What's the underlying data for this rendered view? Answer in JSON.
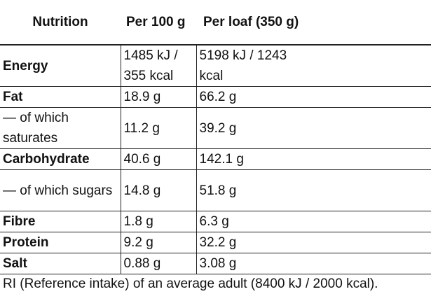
{
  "table": {
    "headers": {
      "nutrient": "Nutrition",
      "per_100g": "Per 100 g",
      "per_loaf": "Per loaf (350 g)"
    },
    "rows": [
      {
        "name": "Energy",
        "per_100g": "1485 kJ / 355 kcal",
        "per_loaf": "5198 kJ / 1243 kcal"
      },
      {
        "name": "Fat",
        "per_100g": "18.9 g",
        "per_loaf": "66.2 g"
      },
      {
        "name": "— of which saturates",
        "per_100g": "11.2 g",
        "per_loaf": "39.2 g"
      },
      {
        "name": "Carbohydrate",
        "per_100g": "40.6 g",
        "per_loaf": "142.1 g"
      },
      {
        "name": "— of which sugars",
        "per_100g": "14.8 g",
        "per_loaf": "51.8 g"
      },
      {
        "name": "Fibre",
        "per_100g": "1.8 g",
        "per_loaf": "6.3 g"
      },
      {
        "name": "Protein",
        "per_100g": "9.2 g",
        "per_loaf": "32.2 g"
      },
      {
        "name": "Salt",
        "per_100g": "0.88 g",
        "per_loaf": "3.08 g"
      }
    ],
    "footnote": "RI (Reference intake) of an average adult (8400 kJ / 2000 kcal)."
  }
}
